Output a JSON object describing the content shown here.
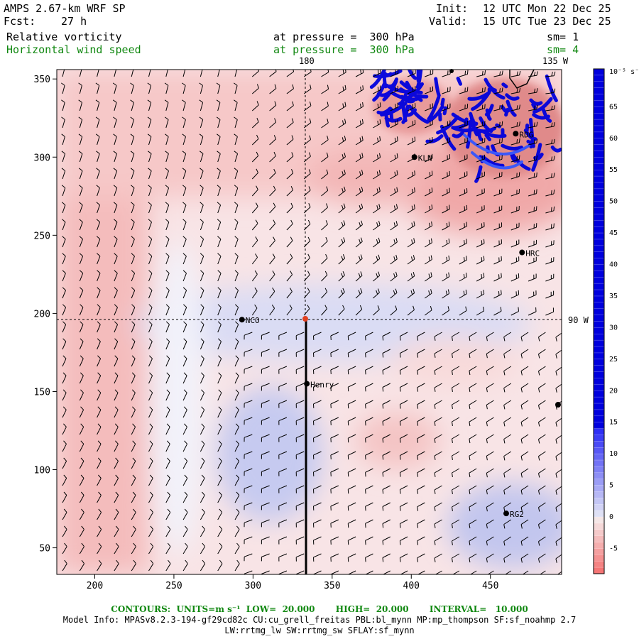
{
  "header": {
    "model_name": "AMPS 2.67-km WRF SP",
    "forecast_label": "Fcst:",
    "forecast_value": "27 h",
    "init_label": "Init:",
    "init_value": "12 UTC Mon 22 Dec 25",
    "valid_label": "Valid:",
    "valid_value": "15 UTC Tue 23 Dec 25",
    "field1_name": "Relative vorticity",
    "field1_level": "at pressure =  300 hPa",
    "field1_sm": "sm= 1",
    "field2_name": "Horizontal wind speed",
    "field2_level": "at pressure =  300 hPa",
    "field2_sm": "sm= 4"
  },
  "map": {
    "x_ticks": [
      200,
      250,
      300,
      350,
      400,
      450
    ],
    "y_ticks": [
      50,
      100,
      150,
      200,
      250,
      300,
      350
    ],
    "x_range": [
      176,
      495
    ],
    "y_range": [
      33,
      356
    ],
    "lon_labels": {
      "top_180": "180",
      "top_135": "135 W",
      "right_90": "90 W"
    },
    "stations": [
      {
        "name": "KLN",
        "x": 402,
        "y": 300
      },
      {
        "name": "RDG",
        "x": 466,
        "y": 315
      },
      {
        "name": "HRC",
        "x": 470,
        "y": 239
      },
      {
        "name": "NCO",
        "x": 293,
        "y": 196
      },
      {
        "name": "Henry",
        "x": 334,
        "y": 155
      },
      {
        "name": "RG2",
        "x": 460,
        "y": 72
      }
    ]
  },
  "colorbar": {
    "unit_label": "10⁻⁵ s⁻¹",
    "ticks": [
      65,
      60,
      55,
      50,
      45,
      40,
      35,
      30,
      25,
      20,
      15,
      10,
      5,
      0,
      -5
    ]
  },
  "footer": {
    "contours_line": "CONTOURS:  UNITS=m s⁻¹  LOW=  20.000       HIGH=  20.000       INTERVAL=   10.000",
    "model_info": "Model Info: MPASv8.2.3-194-gf29cd82c CU:cu_grell_freitas PBL:bl_mynn MP:mp_thompson SF:sf_noahmp 2.7",
    "model_info2": "LW:rrtmg_lw SW:rrtmg_sw SFLAY:sf_mynn"
  },
  "colors": {
    "positive_strong": "#0000dd",
    "positive_light": "#c8cdf0",
    "negative_light": "#f4c0c0",
    "contour_green": "#118811"
  }
}
